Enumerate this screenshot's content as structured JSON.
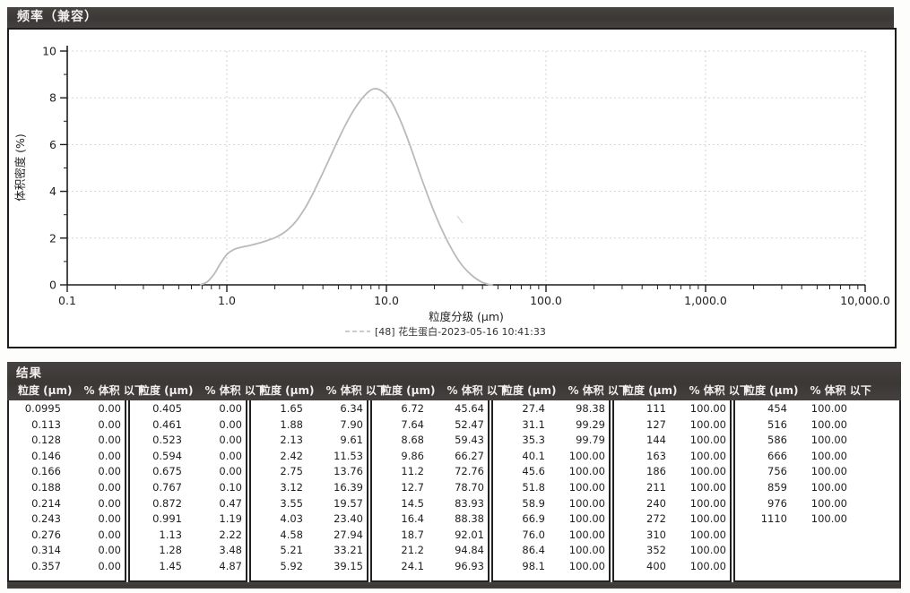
{
  "chart_panel": {
    "title": "频率（兼容）"
  },
  "chart_data": {
    "type": "line",
    "title": "频率（兼容）",
    "xlabel": "粒度分级 (μm)",
    "ylabel": "体积密度 (%)",
    "x_scale": "log",
    "xlim": [
      0.1,
      10000
    ],
    "ylim": [
      0,
      10
    ],
    "x_tick_labels": [
      "0.1",
      "1.0",
      "10.0",
      "100.0",
      "1,000.0",
      "10,000.0"
    ],
    "x_tick_values": [
      0.1,
      1,
      10,
      100,
      1000,
      10000
    ],
    "y_ticks": [
      0,
      2,
      4,
      6,
      8,
      10
    ],
    "grid": true,
    "legend_position": "bottom-center",
    "axis_color": "#1d1d1d",
    "grid_color": "#c9c9c9",
    "series": [
      {
        "name": "[48] 花生蛋白-2023-05-16 10:41:33",
        "color": "#b7bcb7",
        "points": [
          [
            0.68,
            0.0
          ],
          [
            0.75,
            0.12
          ],
          [
            0.83,
            0.45
          ],
          [
            0.91,
            0.9
          ],
          [
            1.0,
            1.3
          ],
          [
            1.1,
            1.5
          ],
          [
            1.22,
            1.6
          ],
          [
            1.38,
            1.68
          ],
          [
            1.58,
            1.78
          ],
          [
            1.8,
            1.9
          ],
          [
            2.05,
            2.05
          ],
          [
            2.35,
            2.3
          ],
          [
            2.7,
            2.7
          ],
          [
            3.1,
            3.3
          ],
          [
            3.55,
            4.05
          ],
          [
            4.1,
            4.95
          ],
          [
            4.75,
            5.9
          ],
          [
            5.5,
            6.8
          ],
          [
            6.35,
            7.55
          ],
          [
            7.3,
            8.1
          ],
          [
            8.3,
            8.38
          ],
          [
            9.4,
            8.28
          ],
          [
            10.7,
            7.85
          ],
          [
            12.2,
            7.05
          ],
          [
            14.0,
            6.0
          ],
          [
            16.2,
            4.75
          ],
          [
            18.8,
            3.55
          ],
          [
            21.8,
            2.5
          ],
          [
            25.3,
            1.6
          ],
          [
            29.3,
            0.9
          ],
          [
            34.0,
            0.43
          ],
          [
            39.0,
            0.14
          ],
          [
            43.5,
            0.02
          ],
          [
            46.5,
            0.0
          ]
        ]
      }
    ]
  },
  "results_table": {
    "title": "结果",
    "headers": {
      "size": "粒度 (μm)",
      "pct": "% 体积 以下"
    },
    "groups": [
      [
        [
          "0.0995",
          "0.00"
        ],
        [
          "0.113",
          "0.00"
        ],
        [
          "0.128",
          "0.00"
        ],
        [
          "0.146",
          "0.00"
        ],
        [
          "0.166",
          "0.00"
        ],
        [
          "0.188",
          "0.00"
        ],
        [
          "0.214",
          "0.00"
        ],
        [
          "0.243",
          "0.00"
        ],
        [
          "0.276",
          "0.00"
        ],
        [
          "0.314",
          "0.00"
        ],
        [
          "0.357",
          "0.00"
        ]
      ],
      [
        [
          "0.405",
          "0.00"
        ],
        [
          "0.461",
          "0.00"
        ],
        [
          "0.523",
          "0.00"
        ],
        [
          "0.594",
          "0.00"
        ],
        [
          "0.675",
          "0.00"
        ],
        [
          "0.767",
          "0.10"
        ],
        [
          "0.872",
          "0.47"
        ],
        [
          "0.991",
          "1.19"
        ],
        [
          "1.13",
          "2.22"
        ],
        [
          "1.28",
          "3.48"
        ],
        [
          "1.45",
          "4.87"
        ]
      ],
      [
        [
          "1.65",
          "6.34"
        ],
        [
          "1.88",
          "7.90"
        ],
        [
          "2.13",
          "9.61"
        ],
        [
          "2.42",
          "11.53"
        ],
        [
          "2.75",
          "13.76"
        ],
        [
          "3.12",
          "16.39"
        ],
        [
          "3.55",
          "19.57"
        ],
        [
          "4.03",
          "23.40"
        ],
        [
          "4.58",
          "27.94"
        ],
        [
          "5.21",
          "33.21"
        ],
        [
          "5.92",
          "39.15"
        ]
      ],
      [
        [
          "6.72",
          "45.64"
        ],
        [
          "7.64",
          "52.47"
        ],
        [
          "8.68",
          "59.43"
        ],
        [
          "9.86",
          "66.27"
        ],
        [
          "11.2",
          "72.76"
        ],
        [
          "12.7",
          "78.70"
        ],
        [
          "14.5",
          "83.93"
        ],
        [
          "16.4",
          "88.38"
        ],
        [
          "18.7",
          "92.01"
        ],
        [
          "21.2",
          "94.84"
        ],
        [
          "24.1",
          "96.93"
        ]
      ],
      [
        [
          "27.4",
          "98.38"
        ],
        [
          "31.1",
          "99.29"
        ],
        [
          "35.3",
          "99.79"
        ],
        [
          "40.1",
          "100.00"
        ],
        [
          "45.6",
          "100.00"
        ],
        [
          "51.8",
          "100.00"
        ],
        [
          "58.9",
          "100.00"
        ],
        [
          "66.9",
          "100.00"
        ],
        [
          "76.0",
          "100.00"
        ],
        [
          "86.4",
          "100.00"
        ],
        [
          "98.1",
          "100.00"
        ]
      ],
      [
        [
          "111",
          "100.00"
        ],
        [
          "127",
          "100.00"
        ],
        [
          "144",
          "100.00"
        ],
        [
          "163",
          "100.00"
        ],
        [
          "186",
          "100.00"
        ],
        [
          "211",
          "100.00"
        ],
        [
          "240",
          "100.00"
        ],
        [
          "272",
          "100.00"
        ],
        [
          "310",
          "100.00"
        ],
        [
          "352",
          "100.00"
        ],
        [
          "400",
          "100.00"
        ]
      ],
      [
        [
          "454",
          "100.00"
        ],
        [
          "516",
          "100.00"
        ],
        [
          "586",
          "100.00"
        ],
        [
          "666",
          "100.00"
        ],
        [
          "756",
          "100.00"
        ],
        [
          "859",
          "100.00"
        ],
        [
          "976",
          "100.00"
        ],
        [
          "1110",
          "100.00"
        ]
      ]
    ],
    "group_widths": [
      133,
      133,
      133,
      133,
      133,
      133,
      187
    ]
  }
}
